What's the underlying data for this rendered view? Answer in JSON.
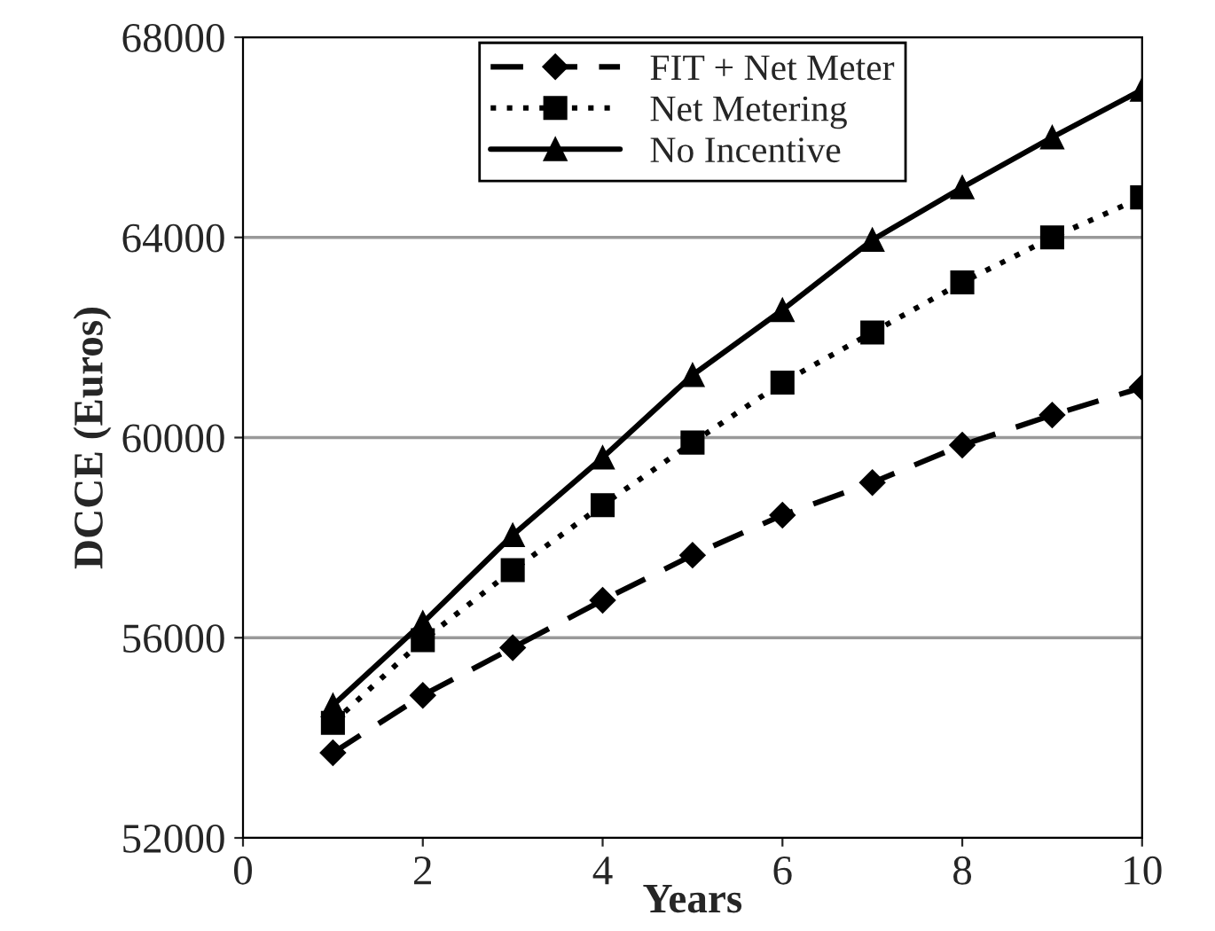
{
  "chart_data": {
    "type": "line",
    "xlabel": "Years",
    "ylabel": "DCCE (Euros)",
    "x": [
      1,
      2,
      3,
      4,
      5,
      6,
      7,
      8,
      9,
      10
    ],
    "series": [
      {
        "name": "FIT + Net Meter",
        "color": "#000000",
        "marker": "diamond",
        "line_style": "dashed",
        "values": [
          53700,
          54850,
          55800,
          56750,
          57650,
          58450,
          59100,
          59850,
          60450,
          61000
        ]
      },
      {
        "name": "Net Metering",
        "color": "#000000",
        "marker": "square",
        "line_style": "dotted",
        "values": [
          54300,
          55950,
          57350,
          58650,
          59900,
          61100,
          62100,
          63100,
          64000,
          64800
        ]
      },
      {
        "name": "No Incentive",
        "color": "#000000",
        "marker": "triangle",
        "line_style": "solid",
        "values": [
          54650,
          56300,
          58050,
          59600,
          61250,
          62550,
          63950,
          65000,
          66000,
          66950
        ]
      }
    ],
    "xlim": [
      0,
      10
    ],
    "xticks": [
      0,
      2,
      4,
      6,
      8,
      10
    ],
    "ylim": [
      52000,
      68000
    ],
    "yticks": [
      52000,
      56000,
      60000,
      64000,
      68000
    ],
    "grid": "y",
    "legend": "top"
  }
}
